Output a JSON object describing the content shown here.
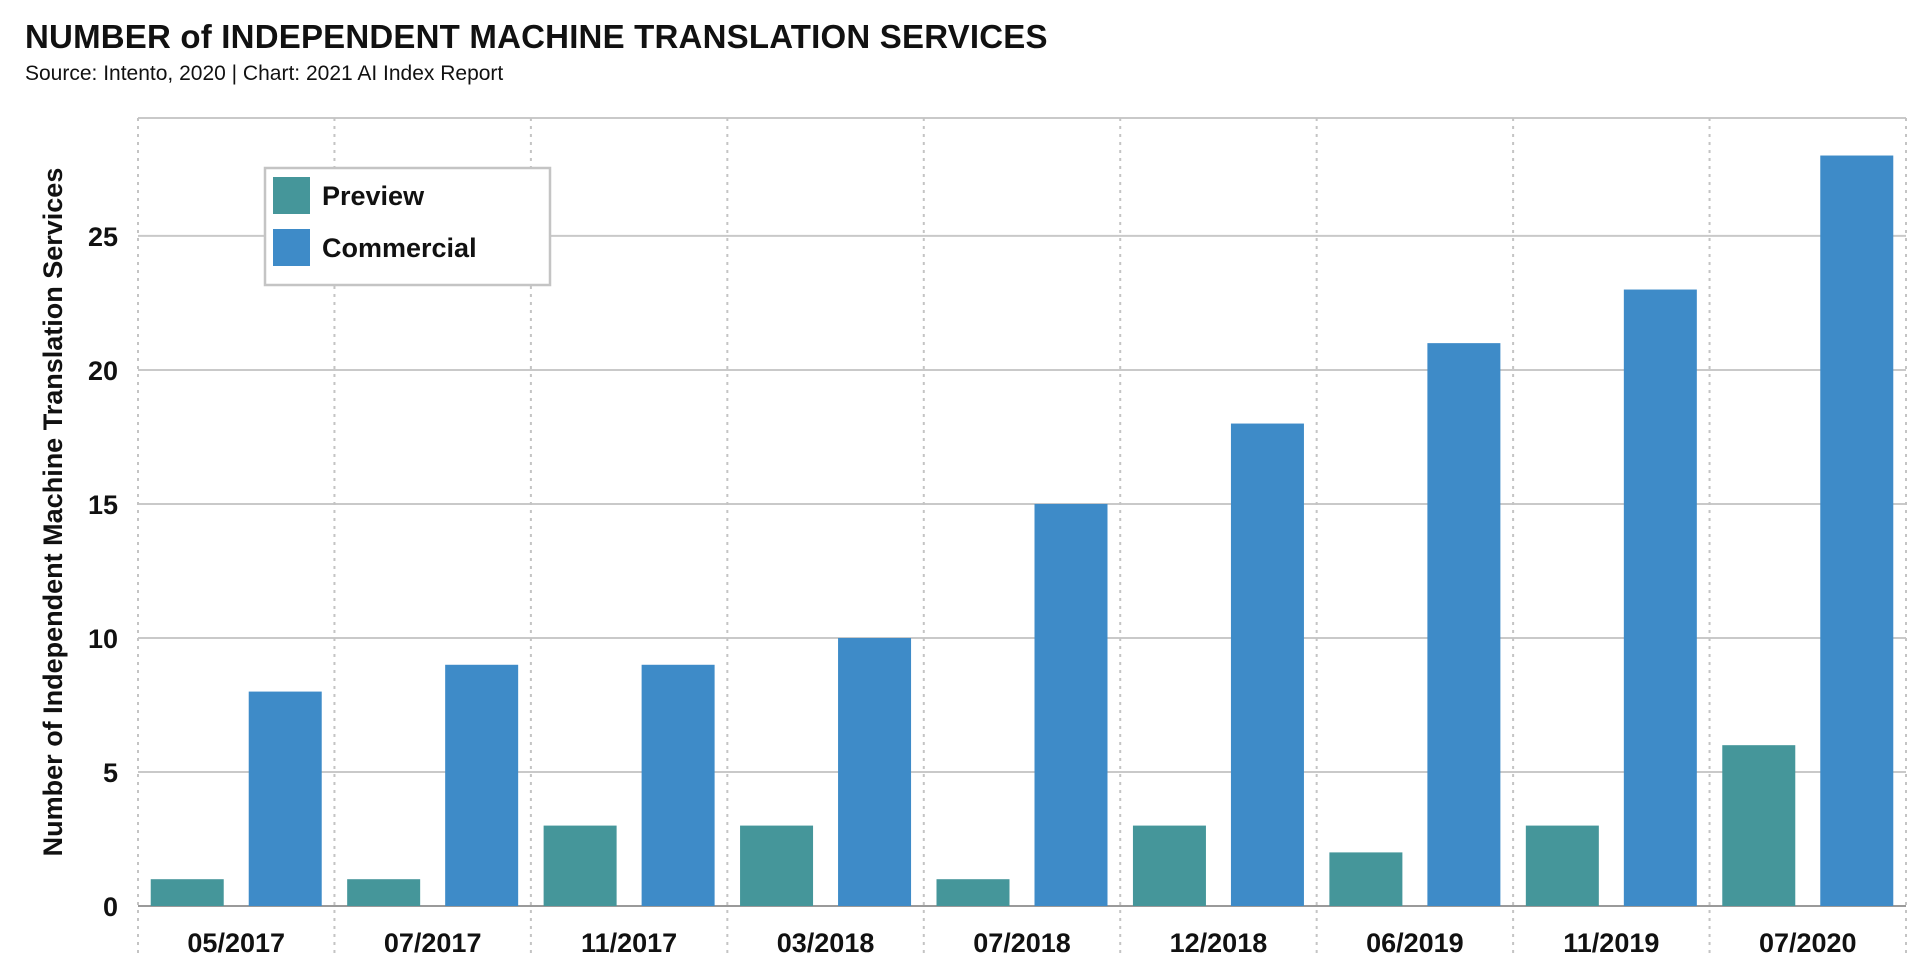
{
  "header": {
    "title": "NUMBER of INDEPENDENT MACHINE TRANSLATION SERVICES",
    "subtitle": "Source: Intento, 2020 | Chart: 2021 AI Index Report"
  },
  "chart_data": {
    "type": "bar",
    "categories": [
      "05/2017",
      "07/2017",
      "11/2017",
      "03/2018",
      "07/2018",
      "12/2018",
      "06/2019",
      "11/2019",
      "07/2020"
    ],
    "series": [
      {
        "name": "Preview",
        "color": "#45969A",
        "values": [
          1,
          1,
          3,
          3,
          1,
          3,
          2,
          3,
          6
        ]
      },
      {
        "name": "Commercial",
        "color": "#3E8BC8",
        "values": [
          8,
          9,
          9,
          10,
          15,
          18,
          21,
          23,
          28
        ]
      }
    ],
    "ylabel": "Number of Independent Machine Translation Services",
    "xlabel": "",
    "ylim": [
      0,
      29.4
    ],
    "yticks": [
      0,
      5,
      10,
      15,
      20,
      25
    ],
    "grid": true,
    "legend_position": "top-left"
  }
}
